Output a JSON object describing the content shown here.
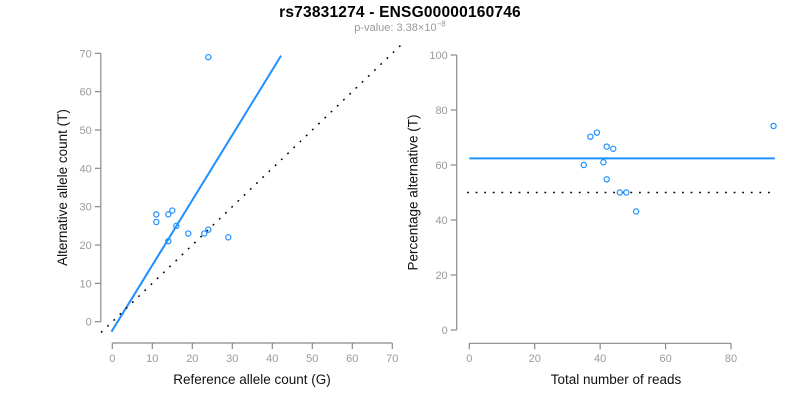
{
  "header": {
    "title": "rs73831274 - ENSG00000160746",
    "subtitle_prefix": "p-value: 3.38×10",
    "subtitle_exponent": "−8"
  },
  "colors": {
    "point_blue": "#1e90ff",
    "fit_line_blue": "#1e90ff",
    "dotted_black": "#000000",
    "axis_gray": "#8a8a8a",
    "tick_label_gray": "#9a9a9a",
    "axis_title_dark": "#111111"
  },
  "chart_data": [
    {
      "name": "allele-count-scatter",
      "type": "scatter",
      "xlabel": "Reference allele count (G)",
      "ylabel": "Alternative allele count (T)",
      "xlim": [
        0,
        70
      ],
      "ylim": [
        0,
        70
      ],
      "xticks": [
        0,
        10,
        20,
        30,
        40,
        50,
        60,
        70
      ],
      "yticks": [
        0,
        10,
        20,
        30,
        40,
        50,
        60,
        70
      ],
      "grid": false,
      "points": [
        [
          11,
          28
        ],
        [
          11,
          26
        ],
        [
          14,
          28
        ],
        [
          15,
          29
        ],
        [
          16,
          25
        ],
        [
          14,
          21
        ],
        [
          19,
          23
        ],
        [
          23,
          23
        ],
        [
          24,
          24
        ],
        [
          29,
          22
        ],
        [
          24,
          69
        ]
      ],
      "lines": [
        {
          "name": "fit-line",
          "style": "solid",
          "color": "#1e90ff",
          "from": [
            -0.2,
            -2.6
          ],
          "to": [
            42.2,
            69.4
          ]
        },
        {
          "name": "identity-line",
          "style": "dotted",
          "color": "#000000",
          "from": [
            -2.8,
            -2.8
          ],
          "to": [
            72.8,
            72.8
          ]
        }
      ]
    },
    {
      "name": "percentage-scatter",
      "type": "scatter",
      "xlabel": "Total number of reads",
      "ylabel": "Percentage alternative (T)",
      "xlim": [
        0,
        80
      ],
      "ylim": [
        0,
        100
      ],
      "xticks": [
        0,
        20,
        40,
        60,
        80
      ],
      "yticks": [
        0,
        20,
        40,
        60,
        80,
        100
      ],
      "grid": false,
      "points": [
        [
          39,
          71.8
        ],
        [
          37,
          70.3
        ],
        [
          42,
          66.7
        ],
        [
          44,
          65.9
        ],
        [
          41,
          61.0
        ],
        [
          35,
          60.0
        ],
        [
          42,
          54.8
        ],
        [
          46,
          50.0
        ],
        [
          48,
          50.0
        ],
        [
          51,
          43.1
        ],
        [
          93,
          74.2
        ]
      ],
      "lines": [
        {
          "name": "mean-line",
          "style": "solid",
          "color": "#1e90ff",
          "from": [
            0,
            62.4
          ],
          "to": [
            93.4,
            62.4
          ]
        },
        {
          "name": "expected-line",
          "style": "dotted",
          "color": "#000000",
          "from": [
            -0.7,
            50
          ],
          "to": [
            92,
            50
          ]
        }
      ]
    }
  ]
}
